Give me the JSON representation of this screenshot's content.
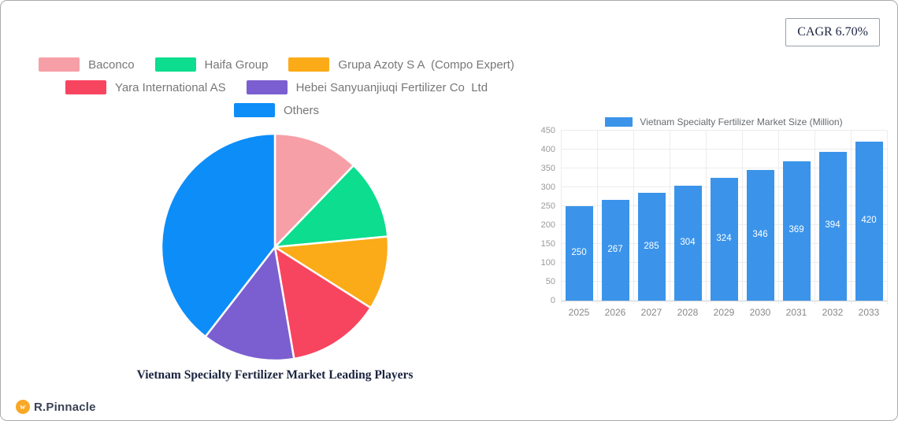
{
  "badge": {
    "cagr_label": "CAGR 6.70%"
  },
  "brand": {
    "name": "R.Pinnacle",
    "mark_color": "#f9a826"
  },
  "colors": {
    "grid": "#ececec",
    "axis_line": "#c9ccd1",
    "axis_text": "#999999",
    "legend_text": "#777777",
    "bar_value_text": "#ffffff"
  },
  "chart_data": [
    {
      "type": "pie",
      "title": "Vietnam Specialty Fertilizer Market Leading Players",
      "labels": [
        "Baconco",
        "Haifa Group",
        "Grupa Azoty S A  (Compo Expert)",
        "Yara International AS",
        "Hebei Sanyuanjiuqi Fertilizer Co  Ltd",
        "Others"
      ],
      "values": [
        12.2,
        11.3,
        10.5,
        13.3,
        13.2,
        39.5
      ],
      "colors": [
        "#f79fa6",
        "#0cdd8e",
        "#fbab17",
        "#f8455f",
        "#7b5fd0",
        "#0d8df8"
      ],
      "start_angle_deg": 0,
      "direction": "clockwise",
      "legend_position": "top",
      "legend_rows": [
        3,
        2,
        1
      ]
    },
    {
      "type": "bar",
      "legend": "Vietnam Specialty Fertilizer Market Size (Million)",
      "categories": [
        "2025",
        "2026",
        "2027",
        "2028",
        "2029",
        "2030",
        "2031",
        "2032",
        "2033"
      ],
      "values": [
        250,
        267,
        285,
        304,
        324,
        346,
        369,
        394,
        420
      ],
      "bar_color": "#3b94ea",
      "ylim": [
        0,
        450
      ],
      "ytick_step": 50,
      "grid": true,
      "value_labels": "inside-center"
    }
  ]
}
